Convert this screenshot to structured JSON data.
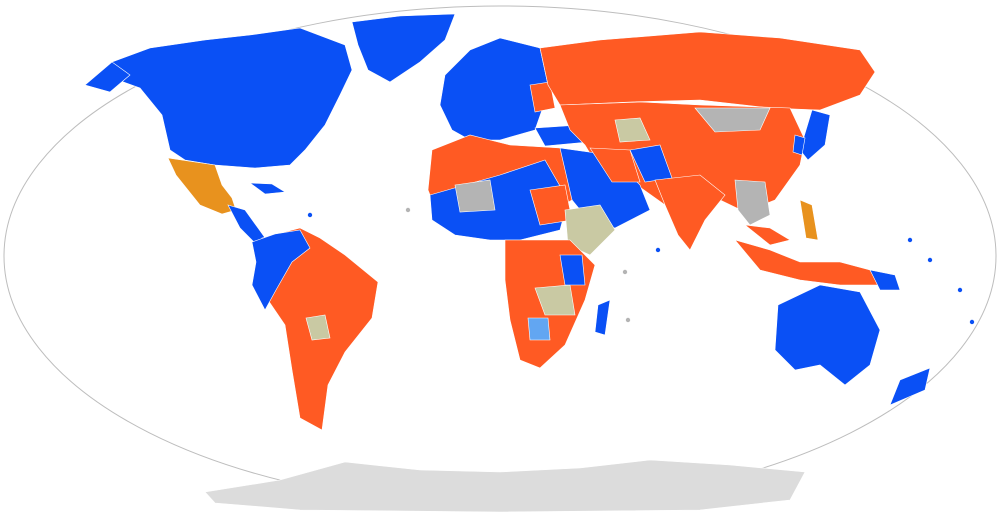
{
  "map": {
    "projection": "Robinson",
    "category_colors": {
      "blue": "#0a50f5",
      "red": "#ff5a23",
      "orange": "#e8921e",
      "grey": "#b4b4b4",
      "tan": "#c9c9a3",
      "light": "#62a6f2",
      "antarctica": "#dcdcdc"
    },
    "frame_color": "#bdbdbd"
  }
}
